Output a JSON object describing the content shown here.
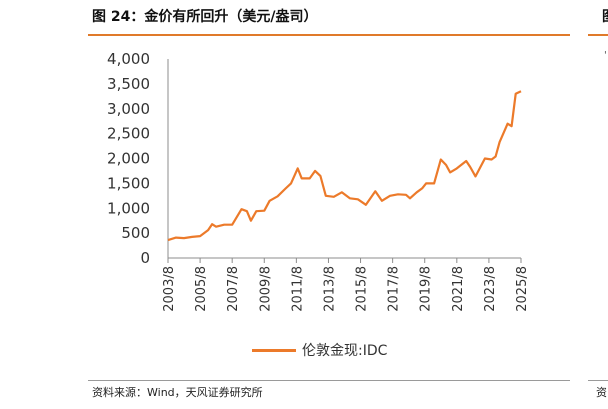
{
  "header": {
    "title": "图 24：金价有所回升（美元/盎司）",
    "next_panel_title_fragment": "图"
  },
  "footer": {
    "source": "资料来源：Wind，天风证券研究所",
    "next_panel_source_fragment": "资"
  },
  "colors": {
    "accent": "#e07a2a",
    "series": "#ec7a2a"
  },
  "chart_data": {
    "type": "line",
    "title": "",
    "xlabel": "",
    "ylabel": "",
    "ylim": [
      0,
      4000
    ],
    "yticks": [
      "0",
      "500",
      "1,000",
      "1,500",
      "2,000",
      "2,500",
      "3,000",
      "3,500",
      "4,000"
    ],
    "ytick_values": [
      0,
      500,
      1000,
      1500,
      2000,
      2500,
      3000,
      3500,
      4000
    ],
    "xlim": [
      "2003-08",
      "2025-08"
    ],
    "xticks": [
      "2003/8",
      "2005/8",
      "2007/8",
      "2009/8",
      "2011/8",
      "2013/8",
      "2015/8",
      "2017/8",
      "2019/8",
      "2021/8",
      "2023/8",
      "2025/8"
    ],
    "grid": false,
    "legend": "bottom",
    "series": [
      {
        "name": "伦敦金现:IDC",
        "x": [
          "2003-08",
          "2004-02",
          "2004-08",
          "2005-02",
          "2005-08",
          "2006-02",
          "2006-05",
          "2006-08",
          "2007-02",
          "2007-08",
          "2008-03",
          "2008-07",
          "2008-10",
          "2009-02",
          "2009-08",
          "2009-12",
          "2010-06",
          "2010-12",
          "2011-04",
          "2011-09",
          "2011-12",
          "2012-06",
          "2012-10",
          "2013-02",
          "2013-04",
          "2013-06",
          "2013-12",
          "2014-06",
          "2014-12",
          "2015-06",
          "2015-12",
          "2016-07",
          "2016-12",
          "2017-06",
          "2017-12",
          "2018-06",
          "2018-09",
          "2019-02",
          "2019-06",
          "2019-09",
          "2020-03",
          "2020-08",
          "2020-12",
          "2021-03",
          "2021-08",
          "2022-03",
          "2022-06",
          "2022-10",
          "2023-05",
          "2023-10",
          "2024-01",
          "2024-04",
          "2024-10",
          "2025-01",
          "2025-04",
          "2025-08"
        ],
        "values": [
          360,
          410,
          400,
          425,
          440,
          560,
          680,
          630,
          670,
          670,
          980,
          940,
          750,
          940,
          950,
          1150,
          1240,
          1400,
          1500,
          1800,
          1600,
          1600,
          1750,
          1650,
          1450,
          1250,
          1230,
          1320,
          1200,
          1180,
          1070,
          1340,
          1150,
          1250,
          1280,
          1270,
          1200,
          1320,
          1400,
          1500,
          1500,
          1980,
          1870,
          1720,
          1800,
          1950,
          1830,
          1640,
          2000,
          1980,
          2040,
          2330,
          2700,
          2650,
          3300,
          3350
        ]
      }
    ]
  }
}
